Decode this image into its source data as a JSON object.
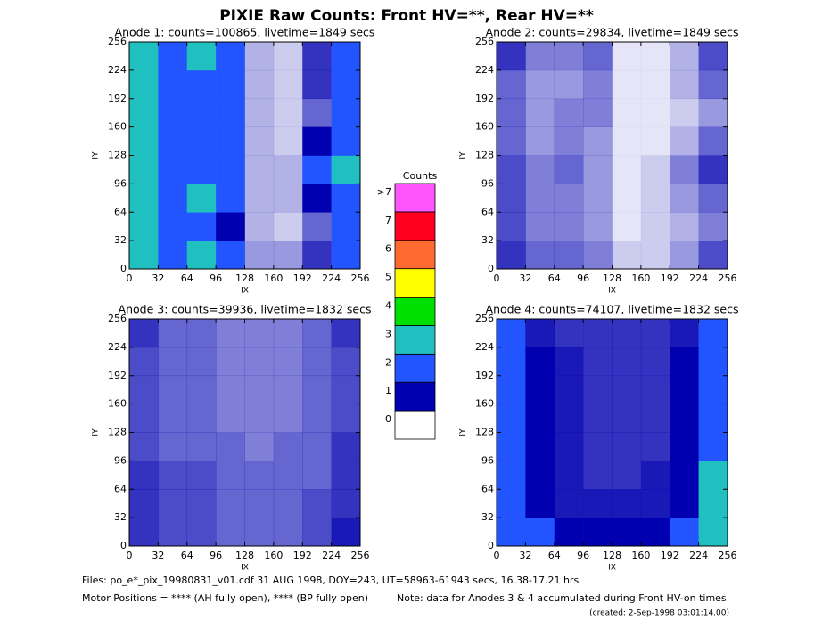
{
  "title": "PIXIE Raw Counts:  Front HV=**, Rear HV=**",
  "colorbar": {
    "title": "Counts",
    "labels": [
      "0",
      "1",
      "2",
      "3",
      "4",
      "5",
      "6",
      "7",
      ">7"
    ],
    "colors": [
      "#ffffff",
      "#0000b0",
      "#2255ff",
      "#20c0c0",
      "#00e000",
      "#ffff00",
      "#ff6a30",
      "#ff0020",
      "#ff55ff"
    ]
  },
  "footer": {
    "files": "Files: po_e*_pix_19980831_v01.cdf    31 AUG 1998, DOY=243, UT=58963-61943 secs, 16.38-17.21 hrs",
    "motor": "Motor Positions = **** (AH fully open), **** (BP fully open)",
    "note": "Note: data for Anodes 3 & 4 accumulated during Front HV-on times",
    "created": "(created:  2-Sep-1998 03:01:14.00)"
  },
  "chart_data": [
    {
      "type": "heatmap",
      "title": "Anode 1: counts=100865, livetime=1849 secs",
      "xlabel": "IX",
      "ylabel": "IY",
      "xlim": [
        0,
        256
      ],
      "ylim": [
        0,
        256
      ],
      "xticks": [
        0,
        32,
        64,
        96,
        128,
        160,
        192,
        224,
        256
      ],
      "yticks": [
        0,
        32,
        64,
        96,
        128,
        160,
        192,
        224,
        256
      ],
      "x_bins": [
        0,
        32,
        64,
        96,
        128,
        160,
        192,
        224,
        256
      ],
      "y_bins": [
        0,
        32,
        64,
        96,
        128,
        160,
        192,
        224,
        256
      ],
      "values": [
        [
          3,
          2,
          2.5,
          1.5,
          0.4,
          0.4,
          0.8,
          2
        ],
        [
          2.5,
          1.5,
          2,
          1,
          0.3,
          0.2,
          0.6,
          1.5
        ],
        [
          3,
          1.5,
          2.5,
          1.2,
          0.3,
          0.3,
          1,
          2
        ],
        [
          2.5,
          1.5,
          2,
          1.2,
          0.3,
          0.3,
          1.2,
          2.5
        ],
        [
          2.5,
          1.5,
          2,
          1.5,
          0.3,
          0.2,
          1,
          2
        ],
        [
          2.5,
          1.5,
          2,
          1.5,
          0.3,
          0.2,
          0.6,
          1.5
        ],
        [
          3,
          2,
          2,
          1.5,
          0.3,
          0.2,
          0.8,
          2
        ],
        [
          3,
          2,
          2.5,
          1.5,
          0.3,
          0.2,
          0.8,
          2
        ]
      ]
    },
    {
      "type": "heatmap",
      "title": "Anode 2: counts=29834, livetime=1849 secs",
      "xlabel": "IX",
      "ylabel": "IY",
      "xlim": [
        0,
        256
      ],
      "ylim": [
        0,
        256
      ],
      "xticks": [
        0,
        32,
        64,
        96,
        128,
        160,
        192,
        224,
        256
      ],
      "yticks": [
        0,
        32,
        64,
        96,
        128,
        160,
        192,
        224,
        256
      ],
      "x_bins": [
        0,
        32,
        64,
        96,
        128,
        160,
        192,
        224,
        256
      ],
      "y_bins": [
        0,
        32,
        64,
        96,
        128,
        160,
        192,
        224,
        256
      ],
      "values": [
        [
          0.8,
          0.6,
          0.6,
          0.5,
          0.2,
          0.2,
          0.4,
          0.7
        ],
        [
          0.7,
          0.5,
          0.5,
          0.4,
          0.1,
          0.2,
          0.3,
          0.5
        ],
        [
          0.7,
          0.5,
          0.5,
          0.4,
          0.1,
          0.2,
          0.4,
          0.6
        ],
        [
          0.7,
          0.5,
          0.6,
          0.4,
          0.1,
          0.2,
          0.5,
          0.8
        ],
        [
          0.6,
          0.4,
          0.5,
          0.4,
          0.1,
          0.1,
          0.3,
          0.6
        ],
        [
          0.6,
          0.4,
          0.5,
          0.5,
          0.1,
          0.1,
          0.2,
          0.4
        ],
        [
          0.6,
          0.4,
          0.4,
          0.5,
          0.1,
          0.1,
          0.3,
          0.6
        ],
        [
          0.8,
          0.5,
          0.5,
          0.6,
          0.1,
          0.1,
          0.3,
          0.7
        ]
      ]
    },
    {
      "type": "heatmap",
      "title": "Anode 3: counts=39936, livetime=1832 secs",
      "xlabel": "IX",
      "ylabel": "IY",
      "xlim": [
        0,
        256
      ],
      "ylim": [
        0,
        256
      ],
      "xticks": [
        0,
        32,
        64,
        96,
        128,
        160,
        192,
        224,
        256
      ],
      "yticks": [
        0,
        32,
        64,
        96,
        128,
        160,
        192,
        224,
        256
      ],
      "x_bins": [
        0,
        32,
        64,
        96,
        128,
        160,
        192,
        224,
        256
      ],
      "y_bins": [
        0,
        32,
        64,
        96,
        128,
        160,
        192,
        224,
        256
      ],
      "values": [
        [
          0.8,
          0.7,
          0.7,
          0.6,
          0.6,
          0.6,
          0.7,
          0.9
        ],
        [
          0.8,
          0.7,
          0.7,
          0.6,
          0.6,
          0.6,
          0.7,
          0.8
        ],
        [
          0.8,
          0.7,
          0.7,
          0.6,
          0.6,
          0.6,
          0.6,
          0.8
        ],
        [
          0.7,
          0.6,
          0.6,
          0.6,
          0.5,
          0.6,
          0.6,
          0.8
        ],
        [
          0.7,
          0.6,
          0.6,
          0.5,
          0.5,
          0.5,
          0.6,
          0.7
        ],
        [
          0.7,
          0.6,
          0.6,
          0.5,
          0.5,
          0.5,
          0.6,
          0.7
        ],
        [
          0.7,
          0.6,
          0.6,
          0.5,
          0.5,
          0.5,
          0.6,
          0.7
        ],
        [
          0.8,
          0.6,
          0.6,
          0.5,
          0.5,
          0.5,
          0.6,
          0.8
        ]
      ]
    },
    {
      "type": "heatmap",
      "title": "Anode 4: counts=74107, livetime=1832 secs",
      "xlabel": "IX",
      "ylabel": "IY",
      "xlim": [
        0,
        256
      ],
      "ylim": [
        0,
        256
      ],
      "xticks": [
        0,
        32,
        64,
        96,
        128,
        160,
        192,
        224,
        256
      ],
      "yticks": [
        0,
        32,
        64,
        96,
        128,
        160,
        192,
        224,
        256
      ],
      "x_bins": [
        0,
        32,
        64,
        96,
        128,
        160,
        192,
        224,
        256
      ],
      "y_bins": [
        0,
        32,
        64,
        96,
        128,
        160,
        192,
        224,
        256
      ],
      "values": [
        [
          2,
          1.2,
          1,
          1,
          1,
          1,
          1.2,
          2.5
        ],
        [
          1.8,
          1,
          0.9,
          0.9,
          0.9,
          0.9,
          1,
          2.2
        ],
        [
          1.8,
          1,
          0.9,
          0.8,
          0.8,
          0.9,
          1,
          2.2
        ],
        [
          1.8,
          1,
          0.9,
          0.8,
          0.8,
          0.8,
          1,
          2
        ],
        [
          1.8,
          1,
          0.9,
          0.8,
          0.8,
          0.8,
          1,
          2
        ],
        [
          1.8,
          1,
          0.9,
          0.8,
          0.8,
          0.8,
          1,
          2
        ],
        [
          1.8,
          1,
          0.9,
          0.8,
          0.8,
          0.8,
          1,
          2
        ],
        [
          1.5,
          0.9,
          0.8,
          0.8,
          0.8,
          0.8,
          0.9,
          1.8
        ]
      ]
    }
  ]
}
